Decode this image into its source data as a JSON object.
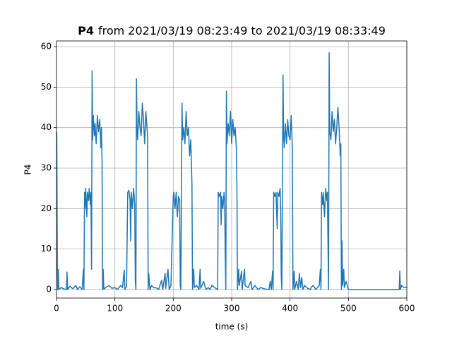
{
  "chart_data": {
    "type": "line",
    "title_bold": "P4",
    "title": "from 2021/03/19 08:23:49 to 2021/03/19 08:33:49",
    "xlabel": "time (s)",
    "ylabel": "P4",
    "color": "#1f77b4",
    "grid": true,
    "xlim": [
      0,
      600
    ],
    "xticks": [
      0,
      100,
      200,
      300,
      400,
      500,
      600
    ],
    "ylim": [
      -2.1,
      61.4
    ],
    "yticks": [
      0,
      10,
      20,
      30,
      40,
      50,
      60
    ],
    "x": [
      0,
      0.5,
      1,
      1.5,
      2,
      3,
      4,
      8,
      12,
      17,
      18,
      19,
      23,
      28,
      33,
      36,
      40,
      44,
      46,
      47,
      48,
      49,
      50,
      52,
      53,
      55,
      56,
      58,
      59,
      60,
      61,
      62,
      63,
      65,
      66,
      68,
      70,
      72,
      74,
      76,
      77,
      78,
      79,
      80,
      81,
      84,
      90,
      95,
      100,
      104,
      110,
      113,
      116,
      117,
      120,
      122,
      124,
      126,
      127,
      128,
      130,
      132,
      134,
      135,
      136,
      137,
      138,
      139,
      141,
      143,
      145,
      147,
      149,
      151,
      153,
      155,
      156,
      157,
      158,
      160,
      163,
      167,
      170,
      175,
      180,
      182,
      186,
      187,
      191,
      193,
      196,
      200,
      201,
      203,
      205,
      207,
      209,
      211,
      212,
      213,
      215,
      216,
      218,
      220,
      222,
      224,
      226,
      228,
      230,
      232,
      233,
      235,
      236,
      240,
      244,
      246,
      247,
      252,
      256,
      260,
      263,
      266,
      276,
      277,
      279,
      281,
      282,
      283,
      285,
      287,
      288,
      289,
      290,
      291,
      292,
      294,
      296,
      298,
      300,
      302,
      304,
      306,
      308,
      309,
      310,
      312,
      313,
      317,
      318,
      322,
      323,
      328,
      333,
      335,
      340,
      345,
      350,
      355,
      364,
      366,
      368,
      370,
      371,
      372,
      374,
      376,
      378,
      379,
      381,
      383,
      384,
      385,
      386,
      388,
      389,
      390,
      392,
      394,
      396,
      398,
      400,
      402,
      403,
      404,
      405,
      407,
      408,
      411,
      414,
      416,
      418,
      420,
      422,
      425,
      430,
      435,
      436,
      440,
      444,
      447,
      450,
      452,
      453,
      454,
      456,
      457,
      459,
      461,
      463,
      464,
      465,
      466,
      467,
      468,
      470,
      472,
      474,
      476,
      478,
      480,
      482,
      484,
      486,
      487,
      488,
      489,
      490,
      492,
      493,
      496,
      500,
      505,
      520,
      540,
      560,
      574,
      587,
      588,
      589,
      591,
      595,
      600
    ],
    "values": [
      39,
      38,
      20,
      5,
      0,
      5,
      0,
      0.5,
      0.2,
      0,
      4.3,
      0,
      0.8,
      0.2,
      1,
      0,
      0.7,
      0,
      5,
      0,
      24,
      20,
      25,
      18,
      24,
      22,
      25,
      21,
      24,
      5,
      54,
      37,
      43,
      38,
      41,
      36,
      43,
      39,
      42,
      35,
      40,
      32,
      0,
      5,
      0,
      0.5,
      1,
      0.3,
      0.5,
      0,
      1,
      0.5,
      4.8,
      0,
      0.8,
      24,
      24.5,
      22,
      12,
      24,
      20,
      25,
      21,
      2,
      0,
      52,
      39,
      37,
      44,
      40,
      38,
      46,
      42,
      36,
      44,
      40,
      38,
      0,
      4,
      0,
      1,
      0.4,
      0.5,
      0,
      2.3,
      0,
      4,
      0.3,
      5,
      0,
      1,
      23,
      24,
      20,
      24,
      18,
      23,
      22,
      1,
      0,
      46,
      37,
      40,
      36,
      44,
      38,
      40,
      33,
      37,
      26,
      0,
      5,
      0.5,
      1,
      0,
      5,
      0.3,
      2,
      0,
      0.5,
      0,
      1,
      0,
      24,
      23,
      24,
      16,
      23,
      20,
      24,
      22,
      9,
      0,
      49,
      36,
      41,
      38,
      44,
      36,
      42,
      38,
      40,
      35,
      26,
      0,
      5,
      1,
      4.5,
      0,
      5,
      1,
      0.5,
      2,
      0,
      1,
      0,
      0.5,
      0.2,
      0,
      2,
      0,
      4.5,
      0,
      24,
      23,
      24,
      15,
      24,
      23,
      25,
      20,
      3,
      0,
      53,
      38,
      35,
      41,
      36,
      42,
      38,
      37,
      43,
      39,
      34,
      0,
      4.5,
      0,
      2,
      0,
      4,
      0.5,
      3,
      0,
      1,
      0.3,
      0,
      0.5,
      1,
      0,
      0.5,
      1,
      5,
      0,
      24,
      21,
      24,
      18,
      25,
      22,
      24,
      12,
      0,
      58.5,
      39,
      37,
      44,
      39,
      42,
      36,
      40,
      45,
      40,
      33,
      36,
      0,
      12,
      1,
      5,
      0.5,
      2,
      0,
      0,
      0,
      0,
      0,
      0,
      0,
      4.6,
      0,
      1,
      0.5,
      0.6
    ]
  }
}
